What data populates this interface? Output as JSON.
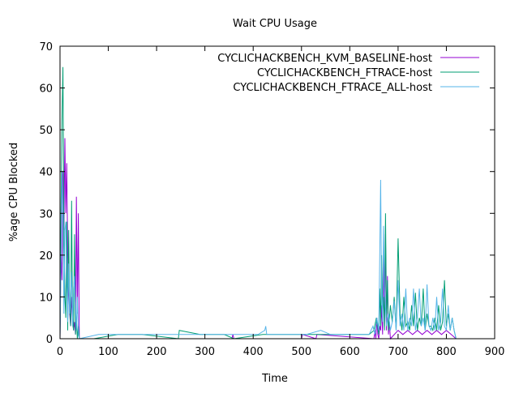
{
  "chart_data": {
    "type": "line",
    "title": "Wait CPU Usage",
    "xlabel": "Time",
    "ylabel": "%age CPU Blocked",
    "xlim": [
      0,
      900
    ],
    "ylim": [
      0,
      70
    ],
    "xticks": [
      0,
      100,
      200,
      300,
      400,
      500,
      600,
      700,
      800,
      900
    ],
    "yticks": [
      0,
      10,
      20,
      30,
      40,
      50,
      60,
      70
    ],
    "grid": false,
    "legend_position": "top-right",
    "series": [
      {
        "name": "CYCLICHACKBENCH_KVM_BASELINE-host",
        "color": "#9400d3",
        "x": [
          0,
          2,
          4,
          6,
          8,
          10,
          12,
          14,
          16,
          18,
          20,
          22,
          24,
          26,
          28,
          30,
          32,
          34,
          36,
          38,
          40,
          42,
          100,
          240,
          280,
          356,
          358,
          360,
          420,
          500,
          502,
          530,
          532,
          650,
          652,
          654,
          656,
          658,
          660,
          662,
          664,
          666,
          668,
          670,
          672,
          674,
          676,
          678,
          680,
          682,
          684,
          700,
          710,
          720,
          730,
          740,
          750,
          760,
          770,
          780,
          790,
          800,
          810,
          820
        ],
        "y": [
          0,
          20,
          14,
          40,
          26,
          48,
          30,
          42,
          20,
          12,
          6,
          3,
          10,
          5,
          2,
          4,
          1,
          34,
          6,
          30,
          0,
          0,
          0,
          0,
          0,
          0,
          1,
          0,
          0,
          0,
          1,
          0,
          1,
          0,
          2,
          0,
          5,
          1,
          0,
          3,
          2,
          8,
          1,
          20,
          3,
          25,
          2,
          15,
          1,
          4,
          0,
          2,
          1,
          2,
          1,
          2,
          1,
          2,
          1,
          2,
          1,
          2,
          1,
          0
        ]
      },
      {
        "name": "CYCLICHACKBENCH_FTRACE-host",
        "color": "#009e73",
        "x": [
          0,
          2,
          4,
          6,
          8,
          10,
          12,
          14,
          16,
          18,
          20,
          22,
          24,
          26,
          28,
          30,
          32,
          34,
          36,
          38,
          40,
          70,
          120,
          170,
          245,
          247,
          290,
          340,
          360,
          420,
          440,
          480,
          520,
          550,
          600,
          640,
          650,
          655,
          660,
          662,
          664,
          666,
          668,
          670,
          672,
          674,
          676,
          678,
          680,
          684,
          688,
          692,
          696,
          700,
          704,
          708,
          712,
          716,
          720,
          724,
          728,
          732,
          736,
          740,
          744,
          748,
          752,
          756,
          760,
          764,
          768,
          772,
          776,
          780,
          784,
          788,
          792,
          796,
          800,
          804,
          808,
          812,
          816,
          820
        ],
        "y": [
          0,
          30,
          52,
          65,
          25,
          10,
          5,
          28,
          2,
          26,
          8,
          3,
          33,
          4,
          2,
          25,
          1,
          5,
          0,
          3,
          0,
          0,
          1,
          1,
          0,
          2,
          1,
          1,
          0,
          1,
          1,
          1,
          1,
          1,
          1,
          1,
          2,
          5,
          1,
          12,
          3,
          20,
          6,
          10,
          2,
          30,
          5,
          14,
          2,
          8,
          4,
          10,
          2,
          24,
          6,
          2,
          10,
          3,
          4,
          2,
          8,
          3,
          11,
          2,
          5,
          3,
          12,
          2,
          6,
          3,
          3,
          2,
          5,
          2,
          8,
          2,
          4,
          14,
          3,
          6,
          2,
          5,
          2,
          0
        ]
      },
      {
        "name": "CYCLICHACKBENCH_FTRACE_ALL-host",
        "color": "#56b4e9",
        "x": [
          0,
          2,
          4,
          6,
          8,
          10,
          12,
          14,
          16,
          18,
          20,
          22,
          24,
          26,
          28,
          30,
          32,
          34,
          36,
          38,
          40,
          80,
          140,
          200,
          285,
          300,
          318,
          350,
          410,
          424,
          426,
          428,
          440,
          470,
          510,
          540,
          560,
          580,
          610,
          625,
          640,
          648,
          652,
          656,
          660,
          662,
          664,
          666,
          668,
          670,
          672,
          676,
          680,
          684,
          688,
          692,
          696,
          700,
          704,
          708,
          712,
          716,
          720,
          724,
          728,
          732,
          736,
          740,
          744,
          748,
          752,
          756,
          760,
          764,
          768,
          772,
          776,
          780,
          784,
          788,
          792,
          796,
          800,
          804,
          808,
          812,
          816,
          820
        ],
        "y": [
          0,
          18,
          40,
          30,
          6,
          26,
          28,
          14,
          4,
          18,
          6,
          10,
          16,
          3,
          12,
          15,
          8,
          2,
          10,
          1,
          0,
          1,
          1,
          1,
          1,
          1,
          1,
          1,
          1,
          2,
          3,
          1,
          1,
          1,
          1,
          2,
          1,
          1,
          1,
          1,
          1,
          3,
          1,
          5,
          2,
          20,
          38,
          10,
          4,
          27,
          12,
          3,
          6,
          2,
          4,
          9,
          2,
          14,
          3,
          6,
          2,
          12,
          2,
          5,
          3,
          12,
          2,
          5,
          12,
          3,
          5,
          2,
          13,
          3,
          2,
          5,
          2,
          10,
          2,
          4,
          12,
          3,
          2,
          8,
          2,
          5,
          2,
          0
        ]
      }
    ]
  }
}
